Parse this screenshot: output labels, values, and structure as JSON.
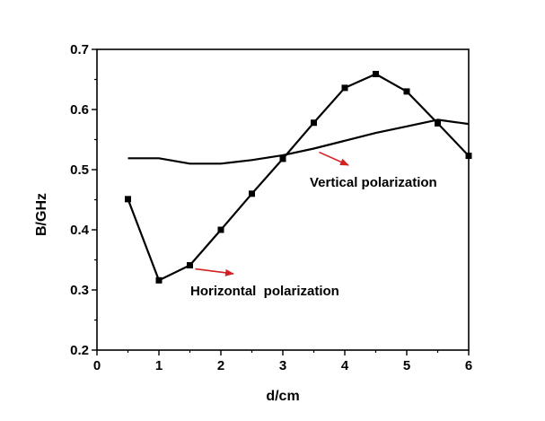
{
  "chart_data": {
    "type": "line",
    "title": "",
    "xlabel": "d/cm",
    "ylabel": "B/GHz",
    "xlim": [
      0,
      6
    ],
    "ylim": [
      0.2,
      0.7
    ],
    "x_ticks": [
      0,
      1,
      2,
      3,
      4,
      5,
      6
    ],
    "y_ticks": [
      0.2,
      0.3,
      0.4,
      0.5,
      0.6,
      0.7
    ],
    "x_tick_labels": [
      "0",
      "1",
      "2",
      "3",
      "4",
      "5",
      "6"
    ],
    "y_tick_labels": [
      "0.2",
      "0.3",
      "0.4",
      "0.5",
      "0.6",
      "0.7"
    ],
    "grid": false,
    "legend": "none",
    "series": [
      {
        "label": "Horizontal  polarization",
        "marker": "square",
        "color": "#000000",
        "x": [
          0.5,
          1.0,
          1.5,
          2.0,
          2.5,
          3.0,
          3.5,
          4.0,
          4.5,
          5.0,
          5.5,
          6.0
        ],
        "y": [
          0.451,
          0.316,
          0.341,
          0.4,
          0.46,
          0.518,
          0.578,
          0.636,
          0.659,
          0.63,
          0.577,
          0.523
        ]
      },
      {
        "label": "Vertical polarization",
        "marker": "none",
        "color": "#000000",
        "x": [
          0.5,
          1.0,
          1.5,
          2.0,
          2.5,
          3.0,
          3.5,
          4.0,
          4.5,
          5.0,
          5.5,
          6.0
        ],
        "y": [
          0.519,
          0.519,
          0.51,
          0.51,
          0.516,
          0.524,
          0.535,
          0.548,
          0.561,
          0.572,
          0.583,
          0.576
        ]
      }
    ],
    "annotations": [
      {
        "text": "Horizontal  polarization",
        "series": 0,
        "point_x": 1.5,
        "point_y": 0.341,
        "arrow_color": "#d42020"
      },
      {
        "text": "Vertical polarization",
        "series": 1,
        "point_x": 3.5,
        "point_y": 0.535,
        "arrow_color": "#d42020"
      }
    ]
  }
}
